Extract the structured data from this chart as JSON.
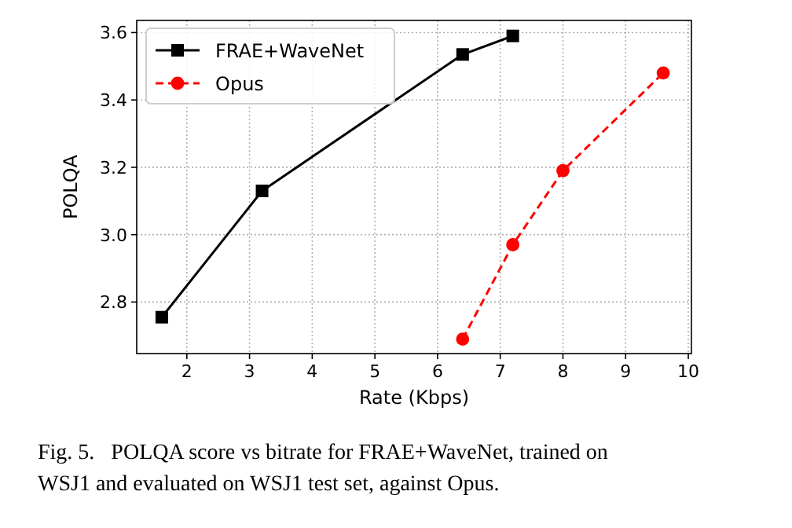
{
  "chart_data": {
    "type": "line",
    "xlabel": "Rate (Kbps)",
    "ylabel": "POLQA",
    "xlim": [
      1.2,
      10.05
    ],
    "xticks": [
      2,
      3,
      4,
      5,
      6,
      7,
      8,
      9,
      10
    ],
    "ylim": [
      2.647,
      3.636
    ],
    "yticks": [
      {
        "value": 2.8,
        "label": "2.8"
      },
      {
        "value": 3.0,
        "label": "3.0"
      },
      {
        "value": 3.2,
        "label": "3.2"
      },
      {
        "value": 3.4,
        "label": "3.4"
      },
      {
        "value": 3.6,
        "label": "3.6"
      }
    ],
    "grid": true,
    "legend": "top left",
    "series": [
      {
        "name": "FRAE+WaveNet",
        "color": "#000000",
        "marker": "square",
        "line_style": "solid",
        "x": [
          1.6,
          3.2,
          6.4,
          7.2
        ],
        "values": [
          2.755,
          3.13,
          3.535,
          3.59
        ]
      },
      {
        "name": "Opus",
        "color": "#ff0000",
        "marker": "circle",
        "line_style": "dashed",
        "x": [
          6.4,
          7.2,
          8,
          9.6
        ],
        "values": [
          2.69,
          2.97,
          3.19,
          3.48
        ]
      }
    ],
    "annotations": [
      "Fig. 5.   POLQA score vs bitrate for FRAE+WaveNet, trained on",
      "WSJ1 and evaluated on WSJ1 test set, against Opus."
    ]
  }
}
